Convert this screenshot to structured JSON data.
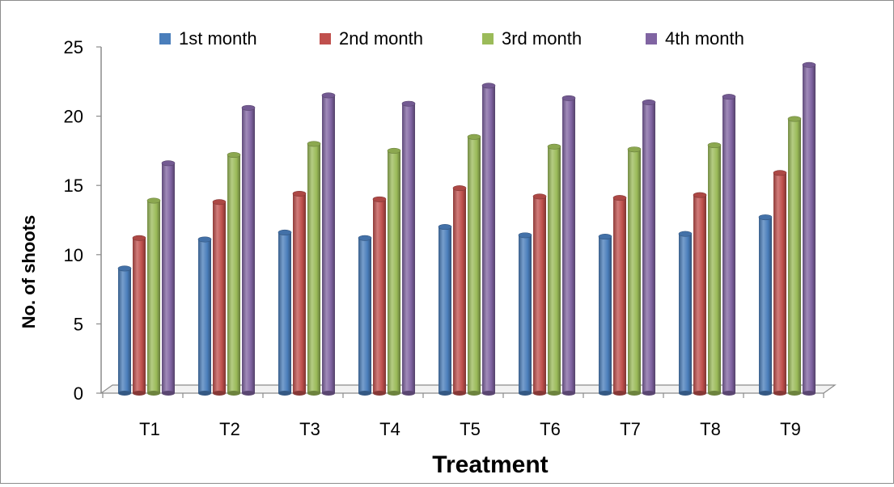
{
  "chart_data": {
    "type": "bar",
    "title": "",
    "xlabel": "Treatment",
    "ylabel": "No. of shoots",
    "categories": [
      "T1",
      "T2",
      "T3",
      "T4",
      "T5",
      "T6",
      "T7",
      "T8",
      "T9"
    ],
    "series": [
      {
        "name": "1st month",
        "color": "#4a7ebb",
        "values": [
          9.0,
          11.1,
          11.6,
          11.2,
          12.0,
          11.4,
          11.3,
          11.5,
          12.7
        ]
      },
      {
        "name": "2nd month",
        "color": "#c0504d",
        "values": [
          11.2,
          13.8,
          14.4,
          14.0,
          14.8,
          14.2,
          14.1,
          14.3,
          15.9
        ]
      },
      {
        "name": "3rd month",
        "color": "#9bbb59",
        "values": [
          13.9,
          17.2,
          18.0,
          17.5,
          18.5,
          17.8,
          17.6,
          17.9,
          19.8
        ]
      },
      {
        "name": "4th month",
        "color": "#8064a2",
        "values": [
          16.6,
          20.6,
          21.5,
          20.9,
          22.2,
          21.3,
          21.0,
          21.4,
          23.7
        ]
      }
    ],
    "ylim": [
      0,
      25
    ],
    "yticks": [
      0,
      5,
      10,
      15,
      20,
      25
    ],
    "grid": false,
    "legend_position": "top"
  }
}
